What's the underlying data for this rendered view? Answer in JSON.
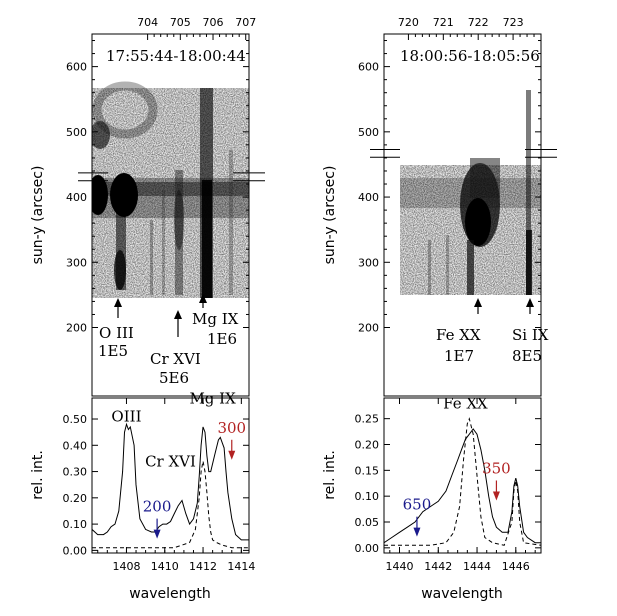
{
  "chart_data": [
    {
      "type": "heatmap",
      "time_range": "17:55:44-18:00:44",
      "ylabel": "sun-y (arcsec)",
      "y_ticks": [
        200,
        300,
        400,
        500,
        600
      ],
      "ylim": [
        95,
        650
      ],
      "top_ticks": [
        "704",
        "705",
        "706",
        "707"
      ],
      "top_tick_values": [
        704,
        705,
        706,
        707
      ],
      "top_range": [
        702.3,
        707.1
      ],
      "line_labels": [
        {
          "name": "O III",
          "value": "1E5",
          "pixel": 704.2
        },
        {
          "name": "Cr XVI",
          "value": "5E6",
          "pixel": 705.0
        },
        {
          "name": "Mg IX",
          "value": "1E6",
          "pixel": 705.7
        }
      ],
      "marker_y": [
        425,
        437
      ]
    },
    {
      "type": "heatmap",
      "time_range": "18:00:56-18:05:56",
      "ylabel": "sun-y (arcsec)",
      "y_ticks": [
        200,
        300,
        400,
        500,
        600
      ],
      "ylim": [
        95,
        650
      ],
      "top_ticks": [
        "720",
        "721",
        "722",
        "723"
      ],
      "top_tick_values": [
        720,
        721,
        722,
        723
      ],
      "top_range": [
        719.3,
        723.8
      ],
      "line_labels": [
        {
          "name": "Fe XX",
          "value": "1E7",
          "pixel": 721.9
        },
        {
          "name": "Si IX",
          "value": "8E5",
          "pixel": 723.0
        }
      ],
      "marker_y": [
        461,
        473
      ]
    },
    {
      "type": "line",
      "xlabel": "wavelength",
      "ylabel": "rel. int.",
      "xlim": [
        1406.2,
        1414.4
      ],
      "ylim": [
        -0.01,
        0.58
      ],
      "x_ticks": [
        1408,
        1410,
        1412,
        1414
      ],
      "y_ticks": [
        "0.00",
        "0.10",
        "0.20",
        "0.30",
        "0.40",
        "0.50"
      ],
      "annotations": [
        {
          "text": "OIII",
          "x": 1408.0,
          "y": 0.49
        },
        {
          "text": "Cr XVI",
          "x": 1410.3,
          "y": 0.32
        },
        {
          "text": "Mg IX",
          "x": 1412.5,
          "y": 0.56
        }
      ],
      "velocity_markers": [
        {
          "text": "200",
          "x": 1409.6,
          "y": 0.14,
          "color": "#1a1a8c"
        },
        {
          "text": "300",
          "x": 1413.5,
          "y": 0.44,
          "color": "#b22222"
        }
      ],
      "series": [
        {
          "style": "solid",
          "x": [
            1406.2,
            1406.5,
            1406.8,
            1407.0,
            1407.2,
            1407.4,
            1407.6,
            1407.8,
            1407.9,
            1408.0,
            1408.1,
            1408.2,
            1408.4,
            1408.5,
            1408.7,
            1409.0,
            1409.3,
            1409.5,
            1409.7,
            1409.9,
            1410.1,
            1410.3,
            1410.5,
            1410.7,
            1410.9,
            1411.1,
            1411.3,
            1411.5,
            1411.7,
            1411.8,
            1411.9,
            1412.0,
            1412.1,
            1412.2,
            1412.3,
            1412.4,
            1412.6,
            1412.8,
            1412.9,
            1413.0,
            1413.1,
            1413.2,
            1413.3,
            1413.5,
            1413.7,
            1414.0,
            1414.4
          ],
          "y": [
            0.08,
            0.06,
            0.06,
            0.07,
            0.09,
            0.1,
            0.15,
            0.3,
            0.45,
            0.48,
            0.46,
            0.47,
            0.4,
            0.25,
            0.12,
            0.08,
            0.07,
            0.07,
            0.09,
            0.1,
            0.1,
            0.11,
            0.14,
            0.17,
            0.19,
            0.14,
            0.1,
            0.12,
            0.18,
            0.28,
            0.4,
            0.47,
            0.45,
            0.36,
            0.3,
            0.3,
            0.36,
            0.42,
            0.43,
            0.41,
            0.39,
            0.3,
            0.22,
            0.12,
            0.06,
            0.04,
            0.04
          ]
        },
        {
          "style": "dashed",
          "x": [
            1406.2,
            1408.0,
            1409.5,
            1410.5,
            1410.9,
            1411.3,
            1411.6,
            1411.8,
            1411.9,
            1412.0,
            1412.1,
            1412.2,
            1412.3,
            1412.4,
            1412.5,
            1412.7,
            1413.0,
            1413.5,
            1414.4
          ],
          "y": [
            0.01,
            0.01,
            0.01,
            0.01,
            0.02,
            0.03,
            0.08,
            0.2,
            0.3,
            0.34,
            0.3,
            0.22,
            0.13,
            0.07,
            0.04,
            0.03,
            0.02,
            0.01,
            0.01
          ]
        }
      ]
    },
    {
      "type": "line",
      "xlabel": "wavelength",
      "ylabel": "rel. int.",
      "xlim": [
        1439.2,
        1447.3
      ],
      "ylim": [
        -0.01,
        0.29
      ],
      "x_ticks": [
        1440,
        1442,
        1444,
        1446
      ],
      "y_ticks": [
        "0.00",
        "0.05",
        "0.10",
        "0.15",
        "0.20",
        "0.25"
      ],
      "annotations": [
        {
          "text": "Fe XX",
          "x": 1443.4,
          "y": 0.27
        }
      ],
      "velocity_markers": [
        {
          "text": "650",
          "x": 1440.9,
          "y": 0.07,
          "color": "#1a1a8c"
        },
        {
          "text": "350",
          "x": 1445.0,
          "y": 0.14,
          "color": "#b22222"
        }
      ],
      "series": [
        {
          "style": "solid",
          "x": [
            1439.2,
            1439.6,
            1440.0,
            1440.4,
            1440.8,
            1441.2,
            1441.6,
            1442.0,
            1442.4,
            1442.7,
            1443.0,
            1443.2,
            1443.4,
            1443.6,
            1443.8,
            1444.0,
            1444.2,
            1444.4,
            1444.6,
            1444.8,
            1445.0,
            1445.3,
            1445.6,
            1445.8,
            1445.9,
            1446.0,
            1446.1,
            1446.2,
            1446.4,
            1446.6,
            1447.0,
            1447.3
          ],
          "y": [
            0.01,
            0.02,
            0.03,
            0.04,
            0.05,
            0.07,
            0.08,
            0.09,
            0.11,
            0.14,
            0.17,
            0.19,
            0.21,
            0.22,
            0.23,
            0.22,
            0.19,
            0.15,
            0.1,
            0.06,
            0.04,
            0.03,
            0.03,
            0.07,
            0.12,
            0.135,
            0.12,
            0.08,
            0.03,
            0.02,
            0.01,
            0.01
          ]
        },
        {
          "style": "dashed",
          "x": [
            1439.2,
            1440.4,
            1441.6,
            1442.4,
            1442.8,
            1443.1,
            1443.3,
            1443.5,
            1443.6,
            1443.8,
            1444.0,
            1444.2,
            1444.4,
            1444.8,
            1445.4,
            1445.8,
            1445.9,
            1446.0,
            1446.1,
            1446.2,
            1446.4,
            1447.3
          ],
          "y": [
            0.005,
            0.005,
            0.005,
            0.01,
            0.03,
            0.08,
            0.17,
            0.24,
            0.25,
            0.22,
            0.14,
            0.06,
            0.02,
            0.01,
            0.005,
            0.05,
            0.11,
            0.13,
            0.11,
            0.05,
            0.01,
            0.005
          ]
        }
      ]
    }
  ]
}
